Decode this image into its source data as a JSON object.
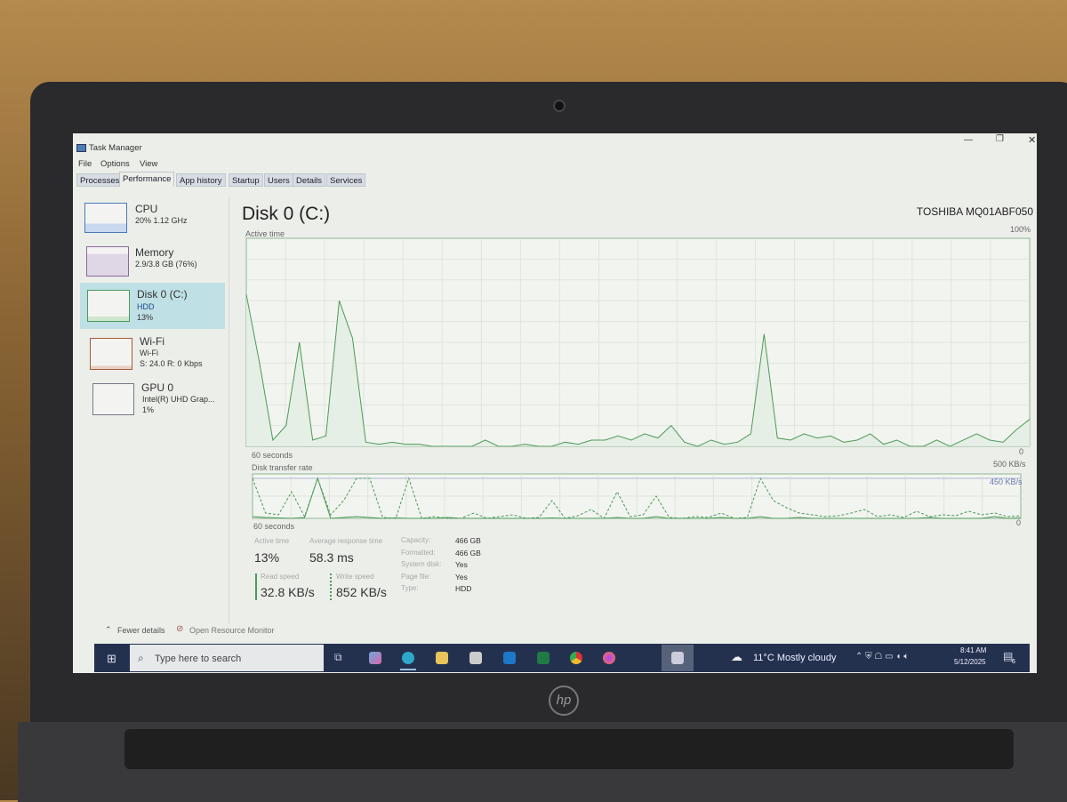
{
  "window": {
    "title": "Task Manager",
    "controls": {
      "minimize": "—",
      "maximize": "❐",
      "close": "✕"
    }
  },
  "menu": [
    "File",
    "Options",
    "View"
  ],
  "tabs": [
    "Processes",
    "Performance",
    "App history",
    "Startup",
    "Users",
    "Details",
    "Services"
  ],
  "active_tab": "Performance",
  "sidebar": [
    {
      "name": "CPU",
      "line1": "20% 1.12 GHz",
      "line2": ""
    },
    {
      "name": "Memory",
      "line1": "2.9/3.8 GB (76%)",
      "line2": ""
    },
    {
      "name": "Disk 0 (C:)",
      "line1": "HDD",
      "line2": "13%",
      "selected": true
    },
    {
      "name": "Wi-Fi",
      "line1": "Wi-Fi",
      "line2": "S: 24.0 R: 0 Kbps"
    },
    {
      "name": "GPU 0",
      "line1": "Intel(R) UHD Grap...",
      "line2": "1%"
    }
  ],
  "main": {
    "title": "Disk 0 (C:)",
    "model": "TOSHIBA MQ01ABF050",
    "active_chart_label": "Active time",
    "active_max": "100%",
    "active_min": "0",
    "seconds": "60 seconds",
    "transfer_chart_label": "Disk transfer rate",
    "transfer_max": "500 KB/s",
    "transfer_mark": "450 KB/s",
    "transfer_min": "0",
    "stats": {
      "active_time_label": "Active time",
      "active_time": "13%",
      "avg_resp_label": "Average response time",
      "avg_resp": "58.3 ms",
      "read_label": "Read speed",
      "read": "32.8 KB/s",
      "write_label": "Write speed",
      "write": "852 KB/s"
    },
    "props": [
      {
        "k": "Capacity:",
        "v": "466 GB"
      },
      {
        "k": "Formatted:",
        "v": "466 GB"
      },
      {
        "k": "System disk:",
        "v": "Yes"
      },
      {
        "k": "Page file:",
        "v": "Yes"
      },
      {
        "k": "Type:",
        "v": "HDD"
      }
    ]
  },
  "footer": {
    "fewer": "Fewer details",
    "resmon": "Open Resource Monitor"
  },
  "taskbar": {
    "search_placeholder": "Type here to search",
    "weather": "11°C  Mostly cloudy",
    "time": "8:41 AM",
    "date": "5/12/2025",
    "notifications": "6"
  },
  "colors": {
    "disk_line": "#4d9a5a",
    "disk_fill": "#e3eee3",
    "selected": "#bfe0e4",
    "taskbar": "#23314f"
  },
  "chart_data": [
    {
      "type": "area",
      "title": "Active time",
      "xlabel": "60 seconds",
      "ylim": [
        0,
        100
      ],
      "yunit": "%",
      "values": [
        73,
        40,
        3,
        10,
        50,
        3,
        5,
        70,
        52,
        2,
        1,
        2,
        1,
        1,
        0,
        0,
        0,
        0,
        3,
        0,
        0,
        1,
        0,
        0,
        2,
        1,
        3,
        3,
        5,
        3,
        6,
        4,
        10,
        2,
        0,
        3,
        1,
        2,
        6,
        54,
        4,
        3,
        6,
        4,
        5,
        2,
        3,
        6,
        1,
        3,
        0,
        0,
        3,
        0,
        3,
        6,
        3,
        2,
        8,
        13
      ]
    },
    {
      "type": "line",
      "title": "Disk transfer rate",
      "xlabel": "60 seconds",
      "ylim": [
        0,
        500
      ],
      "yunit": "KB/s",
      "series": [
        {
          "values": [
            450,
            60,
            40,
            300,
            20,
            450,
            40,
            200,
            450,
            450,
            10,
            0,
            450,
            0,
            20,
            0,
            0,
            60,
            0,
            20,
            40,
            0,
            10,
            200,
            0,
            30,
            100,
            0,
            300,
            20,
            40,
            250,
            10,
            0,
            20,
            10,
            60,
            0,
            10,
            450,
            200,
            120,
            60,
            40,
            20,
            30,
            60,
            100,
            20,
            40,
            10,
            80,
            20,
            40,
            30,
            80,
            40,
            60,
            20,
            30
          ]
        },
        {
          "values": [
            20,
            10,
            5,
            0,
            10,
            450,
            0,
            10,
            20,
            10,
            0,
            5,
            0,
            0,
            0,
            10,
            0,
            0,
            0,
            0,
            0,
            0,
            0,
            5,
            0,
            0,
            0,
            0,
            10,
            0,
            0,
            20,
            0,
            0,
            0,
            0,
            10,
            0,
            0,
            20,
            0,
            0,
            10,
            0,
            0,
            0,
            0,
            0,
            0,
            0,
            0,
            0,
            10,
            0,
            0,
            0,
            0,
            20,
            0,
            5
          ]
        }
      ]
    }
  ]
}
